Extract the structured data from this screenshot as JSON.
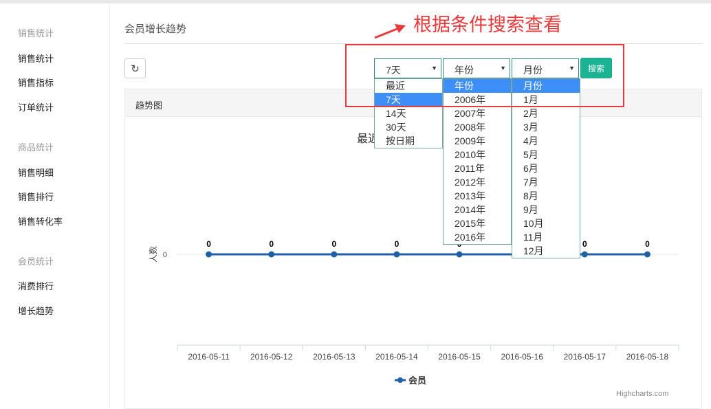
{
  "sidebar": {
    "groups": [
      {
        "title": "销售统计",
        "items": [
          "销售统计",
          "销售指标",
          "订单统计"
        ]
      },
      {
        "title": "商品统计",
        "items": [
          "销售明细",
          "销售排行",
          "销售转化率"
        ]
      },
      {
        "title": "会员统计",
        "items": [
          "消费排行",
          "增长趋势"
        ]
      }
    ]
  },
  "header": {
    "title": "会员增长趋势"
  },
  "toolbar": {
    "refresh_icon": "refresh-icon",
    "selects": {
      "range": "7天",
      "year": "年份",
      "month": "月份"
    },
    "search_label": "搜索"
  },
  "dropdowns": {
    "range": [
      "最近",
      "7天",
      "14天",
      "30天",
      "按日期"
    ],
    "range_selected": "7天",
    "year": [
      "年份",
      "2006年",
      "2007年",
      "2008年",
      "2009年",
      "2010年",
      "2011年",
      "2012年",
      "2013年",
      "2014年",
      "2015年",
      "2016年"
    ],
    "year_selected": "年份",
    "month": [
      "月份",
      "1月",
      "2月",
      "3月",
      "4月",
      "5月",
      "6月",
      "7月",
      "8月",
      "9月",
      "10月",
      "11月",
      "12月"
    ],
    "month_selected": "月份"
  },
  "panel": {
    "title": "趋势图"
  },
  "annotation": {
    "text": "根据条件搜索查看",
    "color": "#e83a3a"
  },
  "chart_data": {
    "type": "line",
    "title": "最近",
    "ylabel": "人数",
    "categories": [
      "2016-05-11",
      "2016-05-12",
      "2016-05-13",
      "2016-05-14",
      "2016-05-15",
      "2016-05-16",
      "2016-05-17",
      "2016-05-18"
    ],
    "series": [
      {
        "name": "会员",
        "values": [
          0,
          0,
          0,
          0,
          0,
          0,
          0,
          0
        ],
        "color": "#1f5fa6"
      }
    ],
    "yticks": [
      "0"
    ],
    "legend": "bottom-center",
    "credit": "Highcharts.com"
  }
}
